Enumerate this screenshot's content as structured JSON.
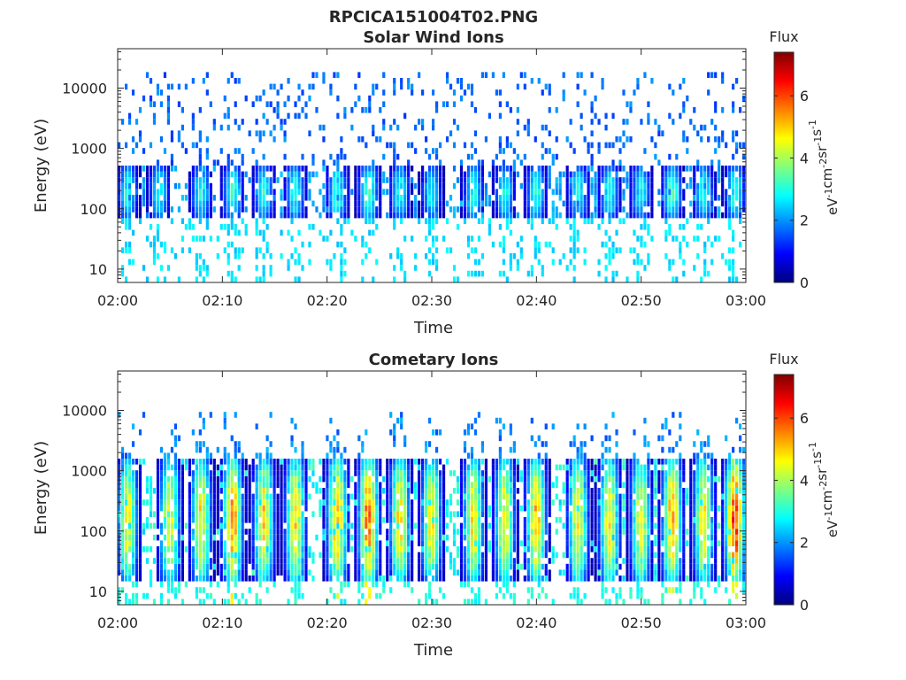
{
  "figure_title": "RPCICA151004T02.PNG",
  "chart_data": [
    {
      "type": "heatmap",
      "title": "Solar Wind Ions",
      "xlabel": "Time",
      "ylabel": "Energy (eV)",
      "x_ticks": [
        "02:00",
        "02:10",
        "02:20",
        "02:30",
        "02:40",
        "02:50",
        "03:00"
      ],
      "xlim": [
        "02:00",
        "03:00"
      ],
      "y_scale": "log",
      "y_ticks": [
        "10",
        "100",
        "1000",
        "10000"
      ],
      "ylim": [
        6,
        45000
      ],
      "colorbar": {
        "label": "Flux",
        "unit": "eV-1cm-2sr-1s-1",
        "range": [
          0,
          7.4
        ],
        "ticks": [
          "0",
          "2",
          "4",
          "6"
        ],
        "colormap": "jet"
      },
      "bursts": [
        {
          "t": "02:01",
          "level": 3.0
        },
        {
          "t": "02:04",
          "level": 2.9
        },
        {
          "t": "02:08",
          "level": 3.0
        },
        {
          "t": "02:11",
          "level": 3.2
        },
        {
          "t": "02:14",
          "level": 3.0
        },
        {
          "t": "02:17",
          "level": 2.9
        },
        {
          "t": "02:21",
          "level": 3.2
        },
        {
          "t": "02:24",
          "level": 3.5
        },
        {
          "t": "02:27",
          "level": 3.0
        },
        {
          "t": "02:30",
          "level": 2.8
        },
        {
          "t": "02:34",
          "level": 3.0
        },
        {
          "t": "02:37",
          "level": 2.9
        },
        {
          "t": "02:40",
          "level": 3.1
        },
        {
          "t": "02:44",
          "level": 2.9
        },
        {
          "t": "02:47",
          "level": 3.0
        },
        {
          "t": "02:50",
          "level": 2.9
        },
        {
          "t": "02:53",
          "level": 3.3
        },
        {
          "t": "02:56",
          "level": 3.0
        },
        {
          "t": "02:59",
          "level": 3.2
        }
      ],
      "band": {
        "e_low": 70,
        "e_high": 500,
        "peak": 3.2
      },
      "background": {
        "e_low": 600,
        "e_high": 20000,
        "level": 1.6
      }
    },
    {
      "type": "heatmap",
      "title": "Cometary Ions",
      "xlabel": "Time",
      "ylabel": "Energy (eV)",
      "x_ticks": [
        "02:00",
        "02:10",
        "02:20",
        "02:30",
        "02:40",
        "02:50",
        "03:00"
      ],
      "xlim": [
        "02:00",
        "03:00"
      ],
      "y_scale": "log",
      "y_ticks": [
        "10",
        "100",
        "1000",
        "10000"
      ],
      "ylim": [
        6,
        45000
      ],
      "colorbar": {
        "label": "Flux",
        "unit": "eV-1cm-2sr-1s-1",
        "range": [
          0,
          7.4
        ],
        "ticks": [
          "0",
          "2",
          "4",
          "6"
        ],
        "colormap": "jet"
      },
      "bursts": [
        {
          "t": "02:01",
          "level": 4.6
        },
        {
          "t": "02:05",
          "level": 4.7
        },
        {
          "t": "02:08",
          "level": 4.8
        },
        {
          "t": "02:11",
          "level": 5.5
        },
        {
          "t": "02:14",
          "level": 5.0
        },
        {
          "t": "02:17",
          "level": 5.0
        },
        {
          "t": "02:21",
          "level": 5.3
        },
        {
          "t": "02:24",
          "level": 5.8
        },
        {
          "t": "02:27",
          "level": 4.9
        },
        {
          "t": "02:30",
          "level": 4.7
        },
        {
          "t": "02:34",
          "level": 4.8
        },
        {
          "t": "02:37",
          "level": 4.7
        },
        {
          "t": "02:40",
          "level": 5.2
        },
        {
          "t": "02:44",
          "level": 4.7
        },
        {
          "t": "02:47",
          "level": 4.8
        },
        {
          "t": "02:50",
          "level": 4.6
        },
        {
          "t": "02:53",
          "level": 5.4
        },
        {
          "t": "02:56",
          "level": 4.8
        },
        {
          "t": "02:59",
          "level": 6.3
        }
      ],
      "band": {
        "e_low": 15,
        "e_high": 1500,
        "peak": 5.0
      },
      "background": {
        "e_low": 2000,
        "e_high": 9000,
        "level": 1.8
      }
    }
  ],
  "colors": {
    "axis": "#262626",
    "background": "#ffffff"
  }
}
